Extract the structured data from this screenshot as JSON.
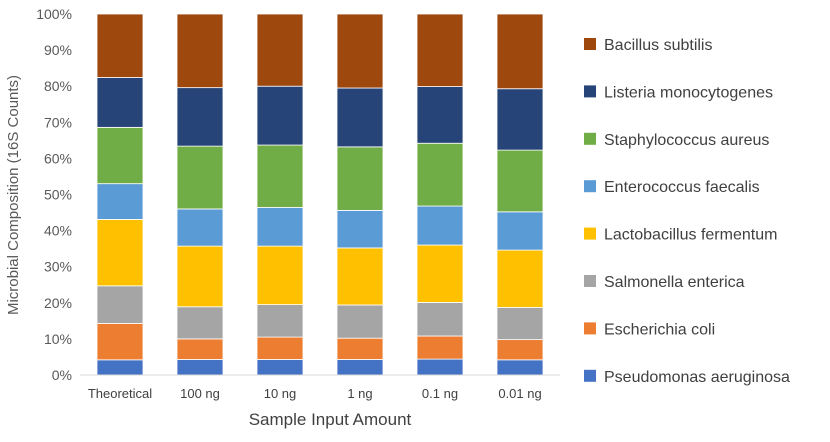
{
  "chart_data": {
    "type": "bar",
    "stacked": true,
    "percent": true,
    "xlabel": "Sample Input Amount",
    "ylabel": "Microbial Composition (16S Counts)",
    "ylim": [
      0,
      100
    ],
    "yticks": [
      "0%",
      "10%",
      "20%",
      "30%",
      "40%",
      "50%",
      "60%",
      "70%",
      "80%",
      "90%",
      "100%"
    ],
    "categories": [
      "Theoretical",
      "100 ng",
      "10 ng",
      "1 ng",
      "0.1 ng",
      "0.01 ng"
    ],
    "grid": false,
    "legend_position": "right",
    "series": [
      {
        "name": "Pseudomonas aeruginosa",
        "color": "#4472C4",
        "values": [
          4.2,
          4.3,
          4.3,
          4.3,
          4.4,
          4.2
        ]
      },
      {
        "name": "Escherichia coli",
        "color": "#ED7D31",
        "values": [
          10.1,
          5.7,
          6.2,
          5.9,
          6.4,
          5.6
        ]
      },
      {
        "name": "Salmonella enterica",
        "color": "#A5A5A5",
        "values": [
          10.4,
          8.9,
          9.0,
          9.2,
          9.3,
          8.9
        ]
      },
      {
        "name": "Lactobacillus fermentum",
        "color": "#FFC000",
        "values": [
          18.4,
          16.8,
          16.2,
          15.8,
          15.9,
          15.9
        ]
      },
      {
        "name": "Enterococcus faecalis",
        "color": "#5B9BD5",
        "values": [
          9.9,
          10.3,
          10.7,
          10.4,
          10.8,
          10.6
        ]
      },
      {
        "name": "Staphylococcus aureus",
        "color": "#70AD47",
        "values": [
          15.6,
          17.4,
          17.3,
          17.6,
          17.4,
          17.1
        ]
      },
      {
        "name": "Listeria monocytogenes",
        "color": "#264478",
        "values": [
          13.8,
          16.2,
          16.3,
          16.3,
          15.7,
          17.0
        ]
      },
      {
        "name": "Bacillus subtilis",
        "color": "#9E480E",
        "values": [
          17.6,
          20.4,
          20.0,
          20.5,
          20.1,
          20.7
        ]
      }
    ]
  }
}
